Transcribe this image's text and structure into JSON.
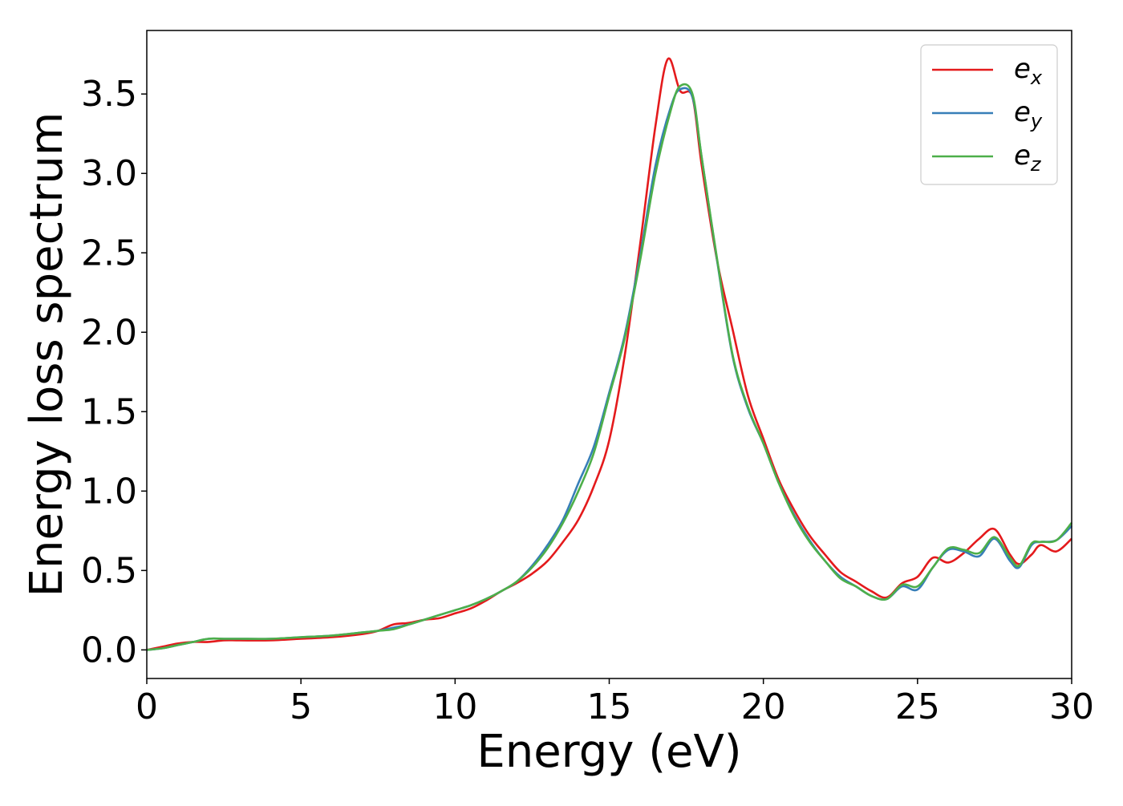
{
  "chart_data": {
    "type": "line",
    "title": "",
    "xlabel": "Energy (eV)",
    "ylabel": "Energy loss spectrum",
    "xlim": [
      0,
      30
    ],
    "ylim": [
      -0.18,
      3.9
    ],
    "xticks": [
      0,
      5,
      10,
      15,
      20,
      25,
      30
    ],
    "yticks": [
      0.0,
      0.5,
      1.0,
      1.5,
      2.0,
      2.5,
      3.0,
      3.5
    ],
    "grid": false,
    "legend_position": "top-right",
    "series": [
      {
        "name": "e_x",
        "label_base": "e",
        "label_sub": "x",
        "color": "#e41a1c",
        "x": [
          0,
          0.5,
          1,
          1.5,
          2,
          2.5,
          3,
          4,
          5,
          6,
          7,
          7.5,
          8,
          8.5,
          9,
          9.5,
          10,
          10.5,
          11,
          11.5,
          12,
          12.5,
          13,
          13.5,
          14,
          14.5,
          15,
          15.5,
          16,
          16.5,
          16.9,
          17.3,
          17.7,
          18,
          18.5,
          19,
          19.5,
          20,
          20.5,
          21,
          21.5,
          22,
          22.5,
          23,
          23.5,
          24,
          24.5,
          25,
          25.5,
          26,
          26.5,
          27,
          27.5,
          28,
          28.3,
          28.7,
          29,
          29.5,
          30
        ],
        "y": [
          0,
          0.02,
          0.04,
          0.05,
          0.05,
          0.06,
          0.06,
          0.06,
          0.07,
          0.08,
          0.1,
          0.12,
          0.16,
          0.17,
          0.19,
          0.2,
          0.23,
          0.26,
          0.31,
          0.37,
          0.42,
          0.48,
          0.56,
          0.68,
          0.82,
          1.03,
          1.32,
          1.85,
          2.55,
          3.3,
          3.72,
          3.52,
          3.48,
          3.05,
          2.45,
          2.02,
          1.6,
          1.33,
          1.07,
          0.88,
          0.72,
          0.6,
          0.49,
          0.43,
          0.37,
          0.33,
          0.42,
          0.46,
          0.58,
          0.55,
          0.61,
          0.7,
          0.76,
          0.6,
          0.54,
          0.6,
          0.66,
          0.62,
          0.7
        ]
      },
      {
        "name": "e_y",
        "label_base": "e",
        "label_sub": "y",
        "color": "#377eb8",
        "x": [
          0,
          0.5,
          1,
          1.5,
          2,
          2.5,
          3,
          4,
          5,
          6,
          7,
          7.5,
          8,
          8.5,
          9,
          9.5,
          10,
          10.5,
          11,
          11.5,
          12,
          12.5,
          13,
          13.5,
          14,
          14.5,
          15,
          15.5,
          16,
          16.5,
          17,
          17.3,
          17.7,
          18,
          18.5,
          19,
          19.5,
          20,
          20.5,
          21,
          21.5,
          22,
          22.5,
          23,
          23.5,
          24,
          24.5,
          25,
          25.5,
          26,
          26.5,
          27,
          27.5,
          28,
          28.3,
          28.7,
          29,
          29.5,
          30
        ],
        "y": [
          0,
          0.01,
          0.03,
          0.05,
          0.07,
          0.07,
          0.07,
          0.07,
          0.08,
          0.09,
          0.11,
          0.12,
          0.14,
          0.16,
          0.19,
          0.22,
          0.25,
          0.28,
          0.32,
          0.37,
          0.43,
          0.53,
          0.66,
          0.82,
          1.05,
          1.28,
          1.62,
          1.98,
          2.48,
          3.05,
          3.42,
          3.53,
          3.48,
          3.1,
          2.45,
          1.85,
          1.52,
          1.3,
          1.05,
          0.85,
          0.69,
          0.56,
          0.46,
          0.4,
          0.34,
          0.32,
          0.4,
          0.38,
          0.52,
          0.63,
          0.62,
          0.59,
          0.7,
          0.56,
          0.52,
          0.66,
          0.68,
          0.69,
          0.78
        ]
      },
      {
        "name": "e_z",
        "label_base": "e",
        "label_sub": "z",
        "color": "#4daf4a",
        "x": [
          0,
          0.5,
          1,
          1.5,
          2,
          2.5,
          3,
          4,
          5,
          6,
          7,
          7.5,
          8,
          8.5,
          9,
          9.5,
          10,
          10.5,
          11,
          11.5,
          12,
          12.5,
          13,
          13.5,
          14,
          14.5,
          15,
          15.5,
          16,
          16.5,
          17,
          17.3,
          17.7,
          18,
          18.5,
          19,
          19.5,
          20,
          20.5,
          21,
          21.5,
          22,
          22.5,
          23,
          23.5,
          24,
          24.5,
          25,
          25.5,
          26,
          26.5,
          27,
          27.5,
          28,
          28.3,
          28.7,
          29,
          29.5,
          30
        ],
        "y": [
          0,
          0.01,
          0.03,
          0.05,
          0.07,
          0.07,
          0.07,
          0.07,
          0.08,
          0.09,
          0.11,
          0.12,
          0.13,
          0.16,
          0.19,
          0.22,
          0.25,
          0.28,
          0.32,
          0.37,
          0.43,
          0.52,
          0.64,
          0.8,
          1.0,
          1.24,
          1.6,
          1.96,
          2.45,
          3.0,
          3.4,
          3.55,
          3.5,
          3.1,
          2.46,
          1.86,
          1.53,
          1.3,
          1.05,
          0.84,
          0.68,
          0.56,
          0.45,
          0.4,
          0.34,
          0.32,
          0.41,
          0.4,
          0.52,
          0.64,
          0.63,
          0.61,
          0.71,
          0.58,
          0.53,
          0.67,
          0.68,
          0.69,
          0.8
        ]
      }
    ]
  }
}
